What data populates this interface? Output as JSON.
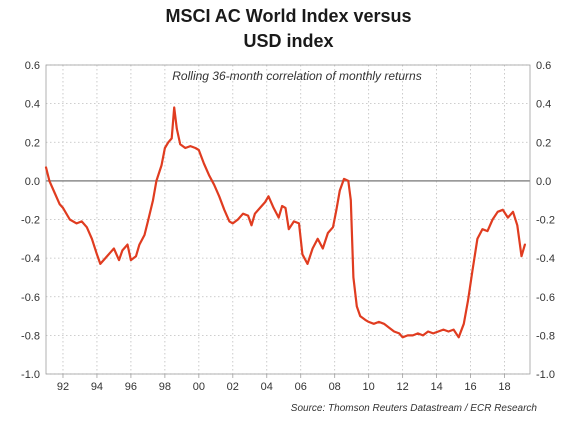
{
  "title_line1": "MSCI AC World Index versus",
  "title_line2": "USD index",
  "subtitle": "Rolling 36-month correlation of monthly returns",
  "source": "Source: Thomson Reuters Datastream / ECR Research",
  "colors": {
    "line": "#e03c20",
    "zero_line": "#8c8c8c",
    "grid": "#bdbdbd",
    "text": "#333333"
  },
  "chart_data": {
    "type": "line",
    "title": "MSCI AC World Index versus USD index",
    "subtitle": "Rolling 36-month correlation of monthly returns",
    "x_ticks": [
      "92",
      "94",
      "96",
      "98",
      "00",
      "02",
      "04",
      "06",
      "08",
      "10",
      "12",
      "14",
      "16",
      "18"
    ],
    "x_tick_years": [
      1992,
      1994,
      1996,
      1998,
      2000,
      2002,
      2004,
      2006,
      2008,
      2010,
      2012,
      2014,
      2016,
      2018
    ],
    "xlim": [
      1991,
      2019.5
    ],
    "ylim": [
      -1.0,
      0.6
    ],
    "y_ticks": [
      "0.6",
      "0.4",
      "0.2",
      "0.0",
      "-0.2",
      "-0.4",
      "-0.6",
      "-0.8",
      "-1.0"
    ],
    "y_tick_values": [
      0.6,
      0.4,
      0.2,
      0.0,
      -0.2,
      -0.4,
      -0.6,
      -0.8,
      -1.0
    ],
    "grid": true,
    "grid_style": "dotted",
    "secondary_y_axis": true,
    "reference_line": 0.0,
    "series": [
      {
        "x": [
          1991.0,
          1991.2,
          1991.5,
          1991.8,
          1992.0,
          1992.4,
          1992.8,
          1993.1,
          1993.4,
          1993.7,
          1994.0,
          1994.2,
          1994.5,
          1994.8,
          1995.0,
          1995.3,
          1995.5,
          1995.8,
          1996.0,
          1996.3,
          1996.5,
          1996.8,
          1997.0,
          1997.3,
          1997.5,
          1997.8,
          1998.0,
          1998.2,
          1998.4,
          1998.55,
          1998.7,
          1998.9,
          1999.2,
          1999.5,
          1999.8,
          2000.0,
          2000.3,
          2000.6,
          2000.9,
          2001.2,
          2001.5,
          2001.8,
          2002.0,
          2002.3,
          2002.6,
          2002.9,
          2003.1,
          2003.3,
          2003.6,
          2003.9,
          2004.1,
          2004.4,
          2004.7,
          2004.9,
          2005.1,
          2005.3,
          2005.6,
          2005.9,
          2006.1,
          2006.4,
          2006.7,
          2007.0,
          2007.3,
          2007.6,
          2007.9,
          2008.1,
          2008.3,
          2008.55,
          2008.8,
          2008.95,
          2009.1,
          2009.3,
          2009.5,
          2009.8,
          2010.0,
          2010.3,
          2010.6,
          2010.9,
          2011.2,
          2011.5,
          2011.8,
          2012.0,
          2012.3,
          2012.6,
          2012.9,
          2013.2,
          2013.5,
          2013.8,
          2014.1,
          2014.4,
          2014.7,
          2015.0,
          2015.3,
          2015.6,
          2015.85,
          2016.1,
          2016.4,
          2016.7,
          2017.0,
          2017.3,
          2017.6,
          2017.9,
          2018.2,
          2018.5,
          2018.75,
          2019.0,
          2019.2
        ],
        "values": [
          0.07,
          0.0,
          -0.06,
          -0.12,
          -0.14,
          -0.2,
          -0.22,
          -0.21,
          -0.24,
          -0.3,
          -0.38,
          -0.43,
          -0.4,
          -0.37,
          -0.35,
          -0.41,
          -0.36,
          -0.33,
          -0.41,
          -0.39,
          -0.33,
          -0.28,
          -0.21,
          -0.1,
          0.0,
          0.08,
          0.17,
          0.2,
          0.22,
          0.38,
          0.27,
          0.19,
          0.17,
          0.18,
          0.17,
          0.16,
          0.09,
          0.03,
          -0.02,
          -0.08,
          -0.15,
          -0.21,
          -0.22,
          -0.2,
          -0.17,
          -0.18,
          -0.23,
          -0.17,
          -0.14,
          -0.11,
          -0.08,
          -0.14,
          -0.19,
          -0.13,
          -0.14,
          -0.25,
          -0.21,
          -0.22,
          -0.38,
          -0.43,
          -0.35,
          -0.3,
          -0.35,
          -0.27,
          -0.24,
          -0.15,
          -0.05,
          0.01,
          0.0,
          -0.1,
          -0.5,
          -0.65,
          -0.7,
          -0.72,
          -0.73,
          -0.74,
          -0.73,
          -0.74,
          -0.76,
          -0.78,
          -0.79,
          -0.81,
          -0.8,
          -0.8,
          -0.79,
          -0.8,
          -0.78,
          -0.79,
          -0.78,
          -0.77,
          -0.78,
          -0.77,
          -0.81,
          -0.74,
          -0.62,
          -0.47,
          -0.3,
          -0.25,
          -0.26,
          -0.2,
          -0.16,
          -0.15,
          -0.19,
          -0.16,
          -0.23,
          -0.39,
          -0.33
        ]
      }
    ]
  }
}
